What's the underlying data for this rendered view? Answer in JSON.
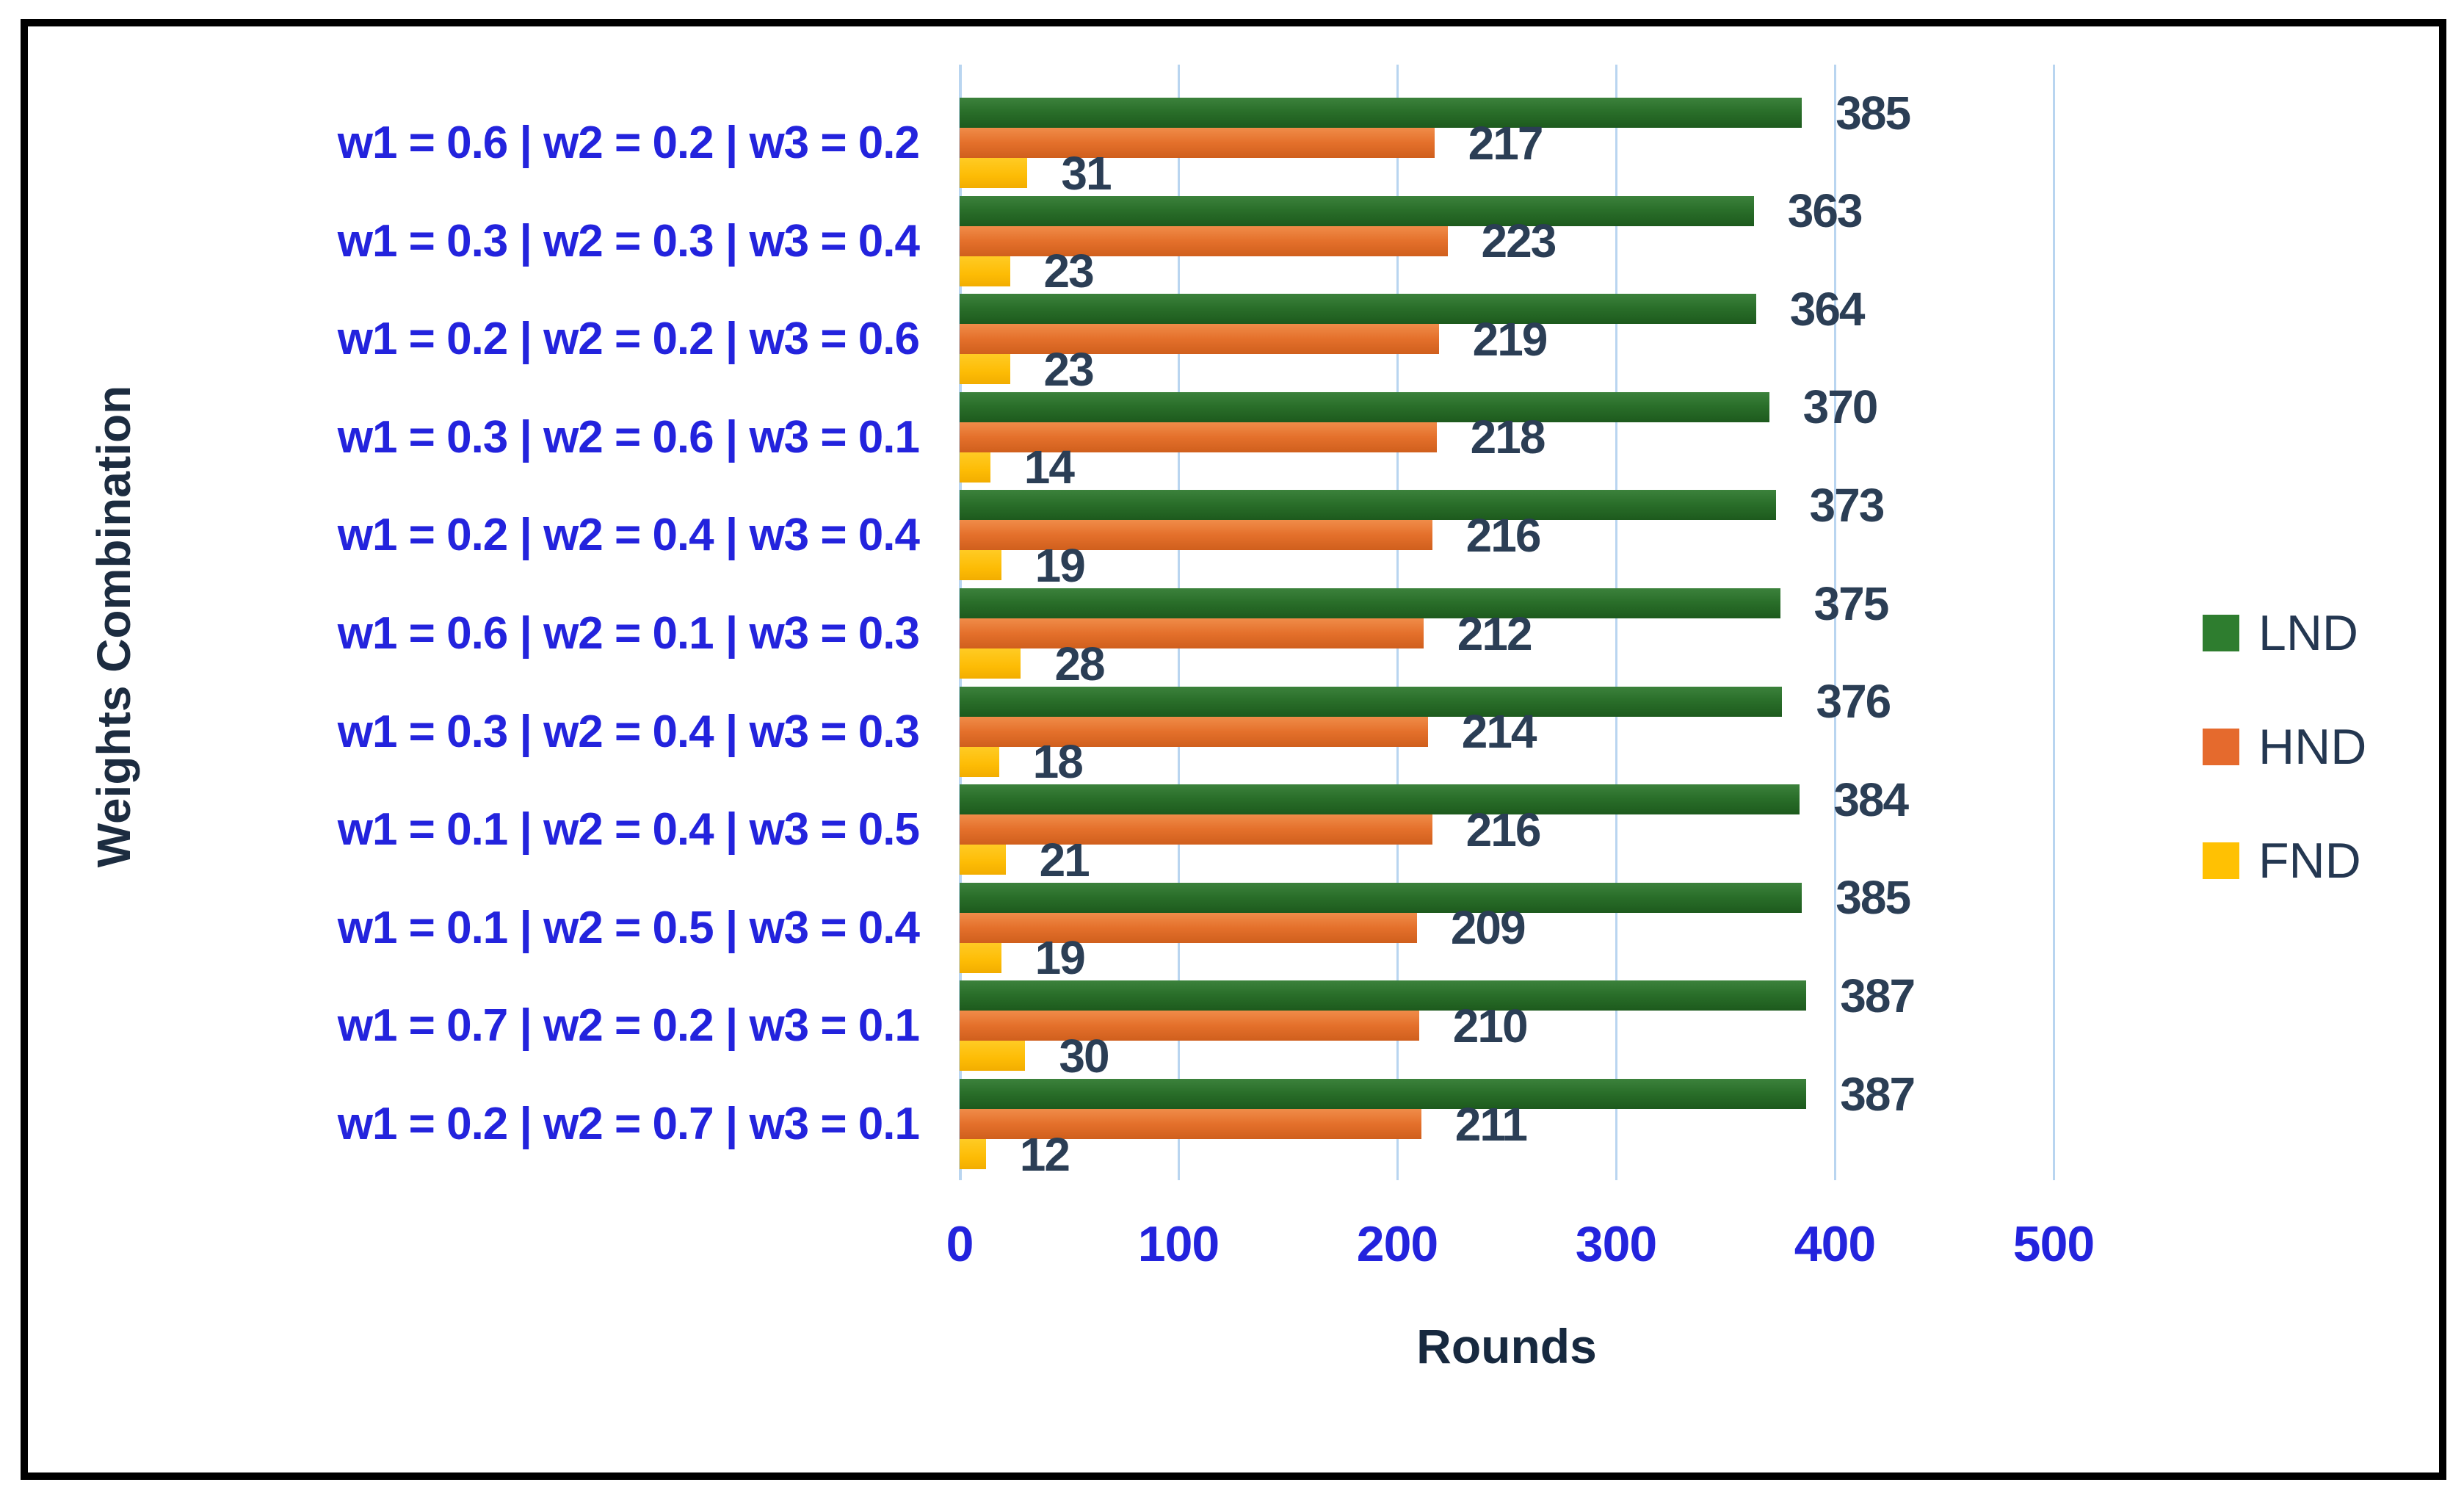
{
  "chart_data": {
    "type": "bar",
    "orientation": "horizontal",
    "title": "",
    "xlabel": "Rounds",
    "ylabel": "Weights Combination",
    "xlim": [
      0,
      500
    ],
    "xticks": [
      0,
      100,
      200,
      300,
      400,
      500
    ],
    "grid": "vertical",
    "legend_position": "right-middle",
    "data_labels": "outside-end",
    "categories": [
      "w1 = 0.6 | w2 = 0.2 | w3 = 0.2",
      "w1 = 0.3 | w2 = 0.3 | w3 = 0.4",
      "w1 = 0.2 | w2 = 0.2 | w3 = 0.6",
      "w1 = 0.3 | w2 = 0.6 | w3 = 0.1",
      "w1 = 0.2 | w2 = 0.4 | w3 = 0.4",
      "w1 = 0.6 | w2 = 0.1 | w3 = 0.3",
      "w1 = 0.3 | w2 = 0.4 | w3 = 0.3",
      "w1 = 0.1 | w2 = 0.4 | w3 = 0.5",
      "w1 = 0.1 | w2 = 0.5 | w3 = 0.4",
      "w1 = 0.7 | w2 = 0.2 | w3 = 0.1",
      "w1 = 0.2 | w2 = 0.7 | w3 = 0.1"
    ],
    "series": [
      {
        "name": "LND",
        "color": "#2e7d2f",
        "values": [
          385,
          363,
          364,
          370,
          373,
          375,
          376,
          384,
          385,
          387,
          387
        ]
      },
      {
        "name": "HND",
        "color": "#e56a2d",
        "values": [
          217,
          223,
          219,
          218,
          216,
          212,
          214,
          216,
          209,
          210,
          211
        ]
      },
      {
        "name": "FND",
        "color": "#ffc103",
        "values": [
          31,
          23,
          23,
          14,
          19,
          28,
          18,
          21,
          19,
          30,
          12
        ]
      }
    ],
    "colors": {
      "gridline": "#b9d5f0",
      "category_label": "#2323dd",
      "tick_label": "#2323dd",
      "data_label": "#2b3e55",
      "axis_title": "#17293f",
      "legend_text": "#243751",
      "border": "#000000"
    }
  }
}
